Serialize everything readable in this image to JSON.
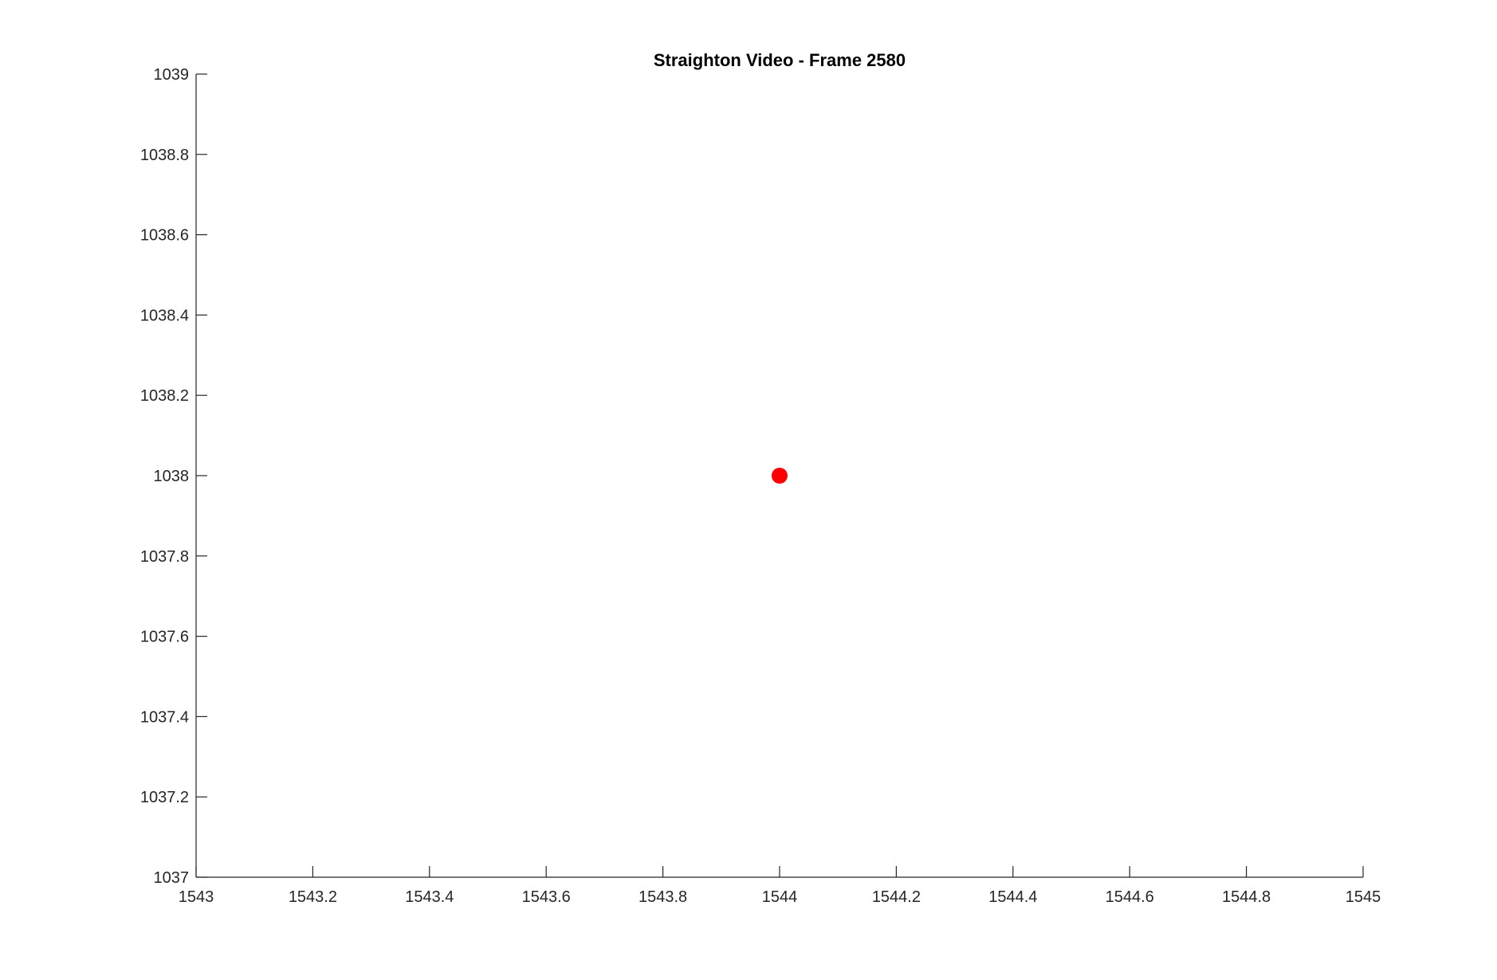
{
  "chart_data": {
    "type": "scatter",
    "title": "Straighton Video - Frame 2580",
    "xlabel": "",
    "ylabel": "",
    "xlim": [
      1543,
      1545
    ],
    "ylim": [
      1037,
      1039
    ],
    "xticks": [
      1543,
      1543.2,
      1543.4,
      1543.6,
      1543.8,
      1544,
      1544.2,
      1544.4,
      1544.6,
      1544.8,
      1545
    ],
    "xtick_labels": [
      "1543",
      "1543.2",
      "1543.4",
      "1543.6",
      "1543.8",
      "1544",
      "1544.2",
      "1544.4",
      "1544.6",
      "1544.8",
      "1545"
    ],
    "yticks": [
      1037,
      1037.2,
      1037.4,
      1037.6,
      1037.8,
      1038,
      1038.2,
      1038.4,
      1038.6,
      1038.8,
      1039
    ],
    "ytick_labels": [
      "1037",
      "1037.2",
      "1037.4",
      "1037.6",
      "1037.8",
      "1038",
      "1038.2",
      "1038.4",
      "1038.6",
      "1038.8",
      "1039"
    ],
    "grid": false,
    "box": false,
    "series": [
      {
        "points": [
          {
            "x": 1544,
            "y": 1038
          }
        ],
        "color": "#ff0000",
        "marker": "filled-circle"
      }
    ]
  }
}
